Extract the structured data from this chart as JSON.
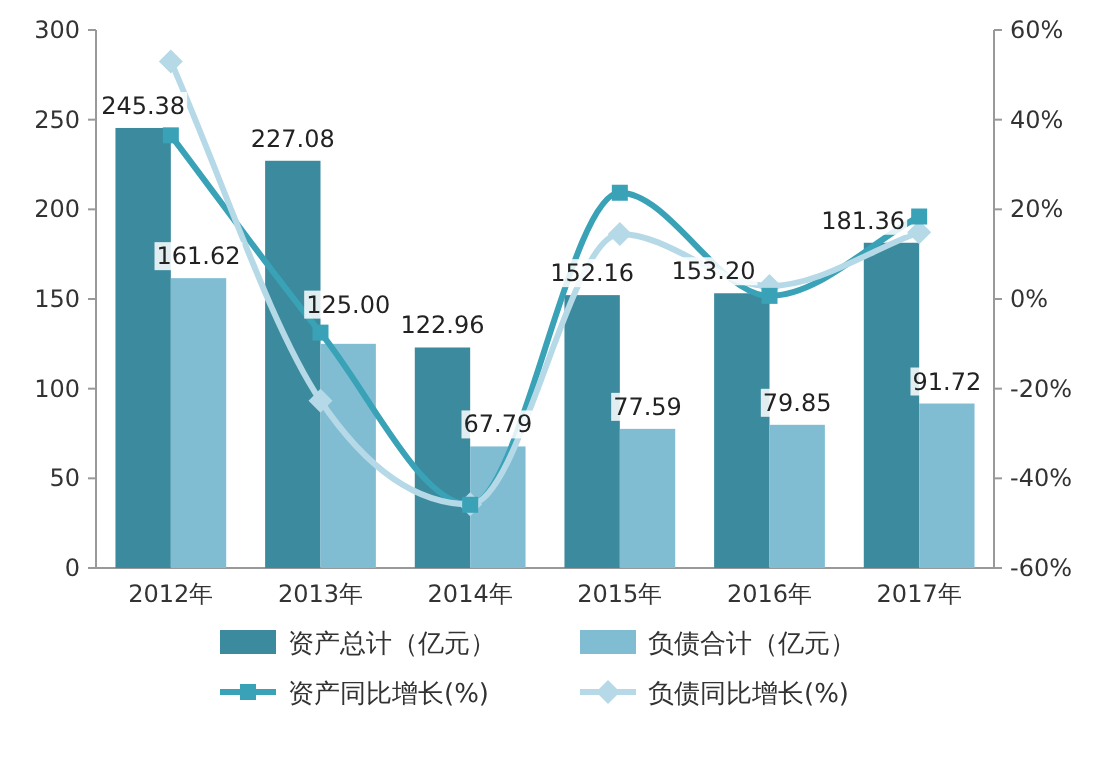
{
  "chart_data": {
    "type": "bar",
    "categories": [
      "2012年",
      "2013年",
      "2014年",
      "2015年",
      "2016年",
      "2017年"
    ],
    "series": [
      {
        "name": "资产总计（亿元）",
        "color": "#3b8a9e",
        "values": [
          245.38,
          227.08,
          122.96,
          152.16,
          153.2,
          181.36
        ],
        "value_labels": [
          "245.38",
          "227.08",
          "122.96",
          "152.16",
          "153.20",
          "181.36"
        ]
      },
      {
        "name": "负债合计（亿元）",
        "color": "#80bdd3",
        "values": [
          161.62,
          125.0,
          67.79,
          77.59,
          79.85,
          91.72
        ],
        "value_labels": [
          "161.62",
          "125.00",
          "67.79",
          "77.59",
          "79.85",
          "91.72"
        ]
      },
      {
        "name": "资产同比增长(%)",
        "type": "line",
        "axis": "y2",
        "color": "#3aa2b6",
        "marker": "square",
        "values": [
          36.5,
          -7.5,
          -45.9,
          23.7,
          0.7,
          18.4
        ]
      },
      {
        "name": "负债同比增长(%)",
        "type": "line",
        "axis": "y2",
        "color": "#b5d9e6",
        "marker": "diamond",
        "values": [
          53,
          -22.7,
          -45.8,
          14.5,
          2.9,
          14.9
        ]
      }
    ],
    "ylim": [
      0,
      300
    ],
    "yticks": [
      0,
      50,
      100,
      150,
      200,
      250,
      300
    ],
    "y2lim": [
      -60,
      60
    ],
    "y2ticks": [
      {
        "value": -60,
        "label": "-60%"
      },
      {
        "value": -40,
        "label": "-40%"
      },
      {
        "value": -20,
        "label": "-20%"
      },
      {
        "value": 0,
        "label": "0%"
      },
      {
        "value": 20,
        "label": "20%"
      },
      {
        "value": 40,
        "label": "40%"
      },
      {
        "value": 60,
        "label": "60%"
      }
    ],
    "legend": "bottom",
    "grid": false
  }
}
